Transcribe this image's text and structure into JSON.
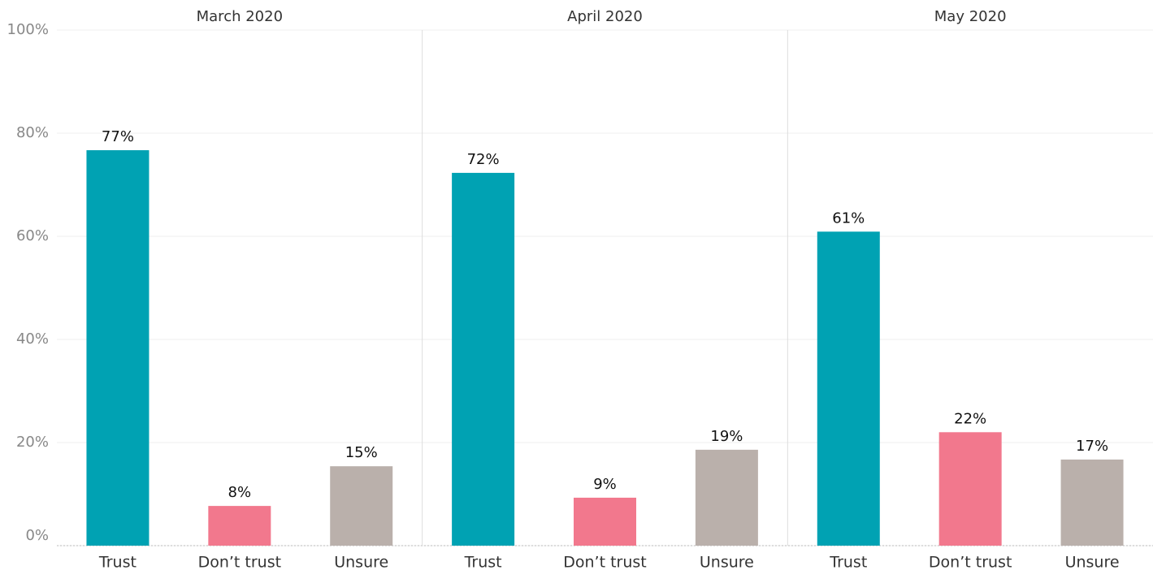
{
  "chart_data": {
    "type": "bar",
    "ylim": [
      0,
      100
    ],
    "yticks": [
      {
        "value": 0,
        "label": "0%"
      },
      {
        "value": 20,
        "label": "20%"
      },
      {
        "value": 40,
        "label": "40%"
      },
      {
        "value": 60,
        "label": "60%"
      },
      {
        "value": 80,
        "label": "80%"
      },
      {
        "value": 100,
        "label": "100%"
      }
    ],
    "grid": true,
    "colors": [
      "#00a2b3",
      "#f2788d",
      "#bab0ab"
    ],
    "panels": [
      {
        "title": "March 2020",
        "categories": [
          "Trust",
          "Don’t trust",
          "Unsure"
        ],
        "values": [
          76.7,
          7.7,
          15.4
        ],
        "value_labels": [
          "77%",
          "8%",
          "15%"
        ]
      },
      {
        "title": "April 2020",
        "categories": [
          "Trust",
          "Don’t trust",
          "Unsure"
        ],
        "values": [
          72.3,
          9.3,
          18.6
        ],
        "value_labels": [
          "72%",
          "9%",
          "19%"
        ]
      },
      {
        "title": "May 2020",
        "categories": [
          "Trust",
          "Don’t trust",
          "Unsure"
        ],
        "values": [
          60.9,
          22.0,
          16.7
        ],
        "value_labels": [
          "61%",
          "22%",
          "17%"
        ]
      }
    ]
  }
}
